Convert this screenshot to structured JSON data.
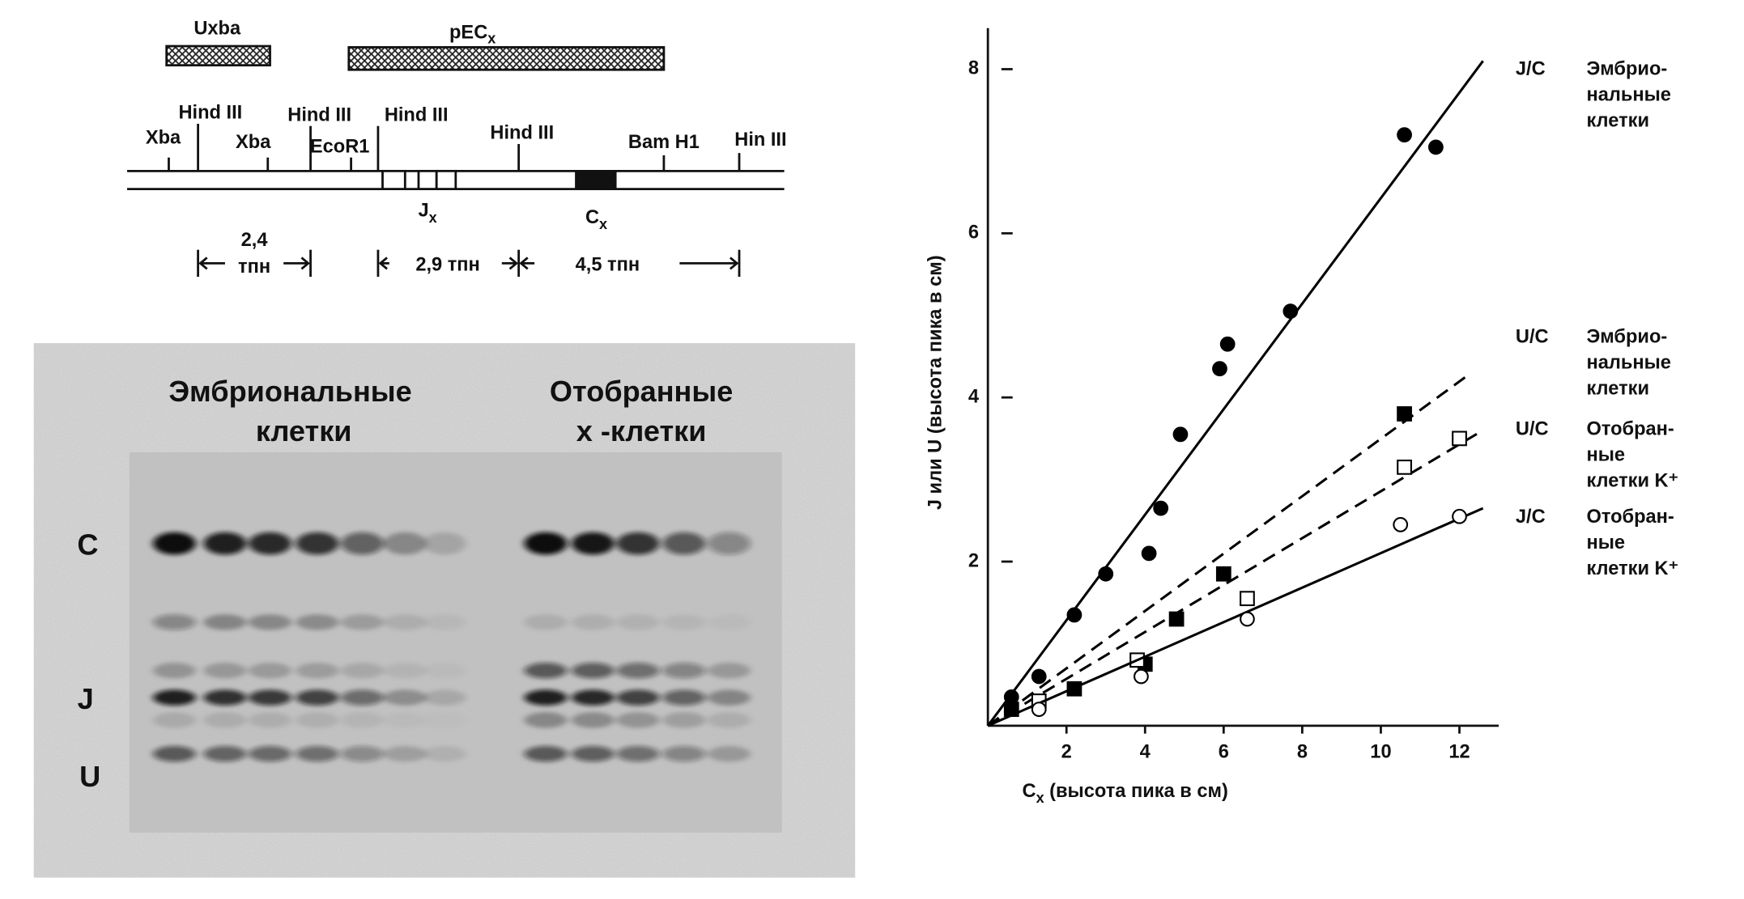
{
  "diagram": {
    "probes": [
      {
        "text": "Uxba"
      },
      {
        "text": "pEC",
        "sub": "x"
      }
    ],
    "sites": [
      "Xba",
      "Hind III",
      "Xba",
      "Hind III",
      "EcoR1",
      "Hind III",
      "Hind III",
      "Bam H1",
      "Hin III"
    ],
    "segments": [
      {
        "text": "J",
        "sub": "x"
      },
      {
        "text": "C",
        "sub": "x"
      }
    ],
    "distances": [
      {
        "lines": [
          "2,4",
          "тпн"
        ]
      },
      {
        "lines": [
          "2,9 тпн"
        ]
      },
      {
        "lines": [
          "4,5 тпн"
        ]
      }
    ]
  },
  "gel": {
    "groups": [
      [
        "Эмбриональные",
        "клетки"
      ],
      [
        "Отобранные",
        "x -клетки"
      ]
    ],
    "rows": [
      "C",
      "J",
      "U"
    ]
  },
  "chart_data": {
    "type": "scatter",
    "xlabel": {
      "text": "C",
      "sub": "x",
      "rest": " (высота пика в см)"
    },
    "ylabel": "J или U (высота пика в см)",
    "xlim": [
      0,
      13
    ],
    "ylim": [
      0,
      8.5
    ],
    "xticks": [
      2,
      4,
      6,
      8,
      10,
      12
    ],
    "yticks": [
      2,
      4,
      6,
      8
    ],
    "series": [
      {
        "name": "J/C",
        "description": [
          "Эмбрио-",
          "нальные",
          "клетки"
        ],
        "marker": "circle-filled",
        "color": "#000",
        "x": [
          0.6,
          1.3,
          2.2,
          3.0,
          4.1,
          4.4,
          4.9,
          5.9,
          6.1,
          7.7,
          10.6,
          11.4
        ],
        "values": [
          0.35,
          0.6,
          1.35,
          1.85,
          2.1,
          2.65,
          3.55,
          4.35,
          4.65,
          5.05,
          7.2,
          7.05
        ],
        "fit": {
          "x": 12.6,
          "y": 8.1,
          "dashed": false
        }
      },
      {
        "name": "U/C",
        "description": [
          "Эмбрио-",
          "нальные",
          "клетки"
        ],
        "marker": "square-filled",
        "color": "#000",
        "x": [
          0.6,
          2.2,
          4.0,
          4.8,
          6.0,
          10.6
        ],
        "values": [
          0.2,
          0.45,
          0.75,
          1.3,
          1.85,
          3.8
        ],
        "fit": {
          "x": 12.3,
          "y": 4.3,
          "dashed": true
        }
      },
      {
        "name": "U/C",
        "description": [
          "Отобран-",
          "ные",
          "клетки K⁺"
        ],
        "marker": "square-open",
        "color": "#000",
        "x": [
          1.3,
          3.8,
          6.6,
          10.6,
          12.0
        ],
        "values": [
          0.3,
          0.8,
          1.55,
          3.15,
          3.5
        ],
        "fit": {
          "x": 12.6,
          "y": 3.6,
          "dashed": true
        }
      },
      {
        "name": "J/C",
        "description": [
          "Отобран-",
          "ные",
          "клетки K⁺"
        ],
        "marker": "circle-open",
        "color": "#000",
        "x": [
          1.3,
          3.9,
          6.6,
          10.5,
          12.0
        ],
        "values": [
          0.2,
          0.6,
          1.3,
          2.45,
          2.55
        ],
        "fit": {
          "x": 12.6,
          "y": 2.65,
          "dashed": false
        }
      }
    ]
  }
}
